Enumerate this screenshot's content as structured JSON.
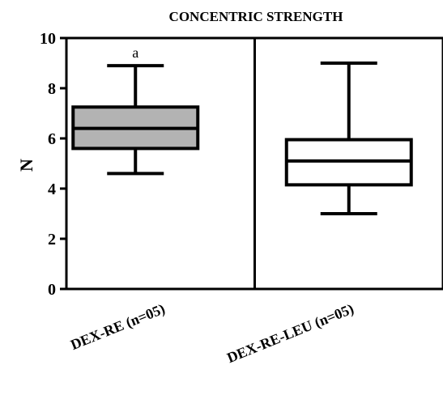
{
  "chart_data": {
    "type": "box",
    "title": "CONCENTRIC STRENGTH",
    "ylabel": "N",
    "xlabel": "",
    "ylim": [
      0,
      10
    ],
    "yticks": [
      0,
      2,
      4,
      6,
      8,
      10
    ],
    "categories": [
      "DEX-RE (n=05)",
      "DEX-RE-LEU (n=05)"
    ],
    "boxes": [
      {
        "category": "DEX-RE (n=05)",
        "min": 4.6,
        "q1": 5.6,
        "median": 6.4,
        "q3": 7.25,
        "max": 8.9,
        "fill": "#b3b3b3",
        "annotation": "a"
      },
      {
        "category": "DEX-RE-LEU (n=05)",
        "min": 3.0,
        "q1": 4.15,
        "median": 5.1,
        "q3": 5.95,
        "max": 9.0,
        "fill": "#ffffff",
        "annotation": ""
      }
    ],
    "grid": false,
    "legend": "none"
  }
}
